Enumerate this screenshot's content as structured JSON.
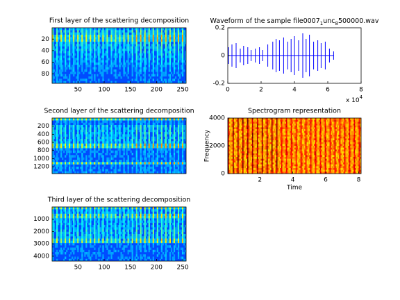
{
  "chart_data": [
    {
      "type": "image",
      "title": "First layer of the scattering decomposition",
      "xlim": [
        0.5,
        256.5
      ],
      "xticks": [
        50,
        100,
        150,
        200,
        250
      ],
      "ylim": [
        0.5,
        96.5
      ],
      "yticks": [
        20,
        40,
        60,
        80
      ],
      "y_reversed": true,
      "colormap": "jet"
    },
    {
      "type": "image",
      "title": "Second layer of the scattering decomposition",
      "xlim": [
        0.5,
        256.5
      ],
      "ylim": [
        0.5,
        1370
      ],
      "yticks": [
        200,
        400,
        600,
        800,
        1000,
        1200
      ],
      "y_reversed": true,
      "colormap": "jet"
    },
    {
      "type": "image",
      "title": "Third layer of the scattering decomposition",
      "xlim": [
        0.5,
        256.5
      ],
      "xticks": [
        50,
        100,
        150,
        200,
        250
      ],
      "ylim": [
        0.5,
        4400
      ],
      "yticks": [
        1000,
        2000,
        3000,
        4000
      ],
      "y_reversed": true,
      "colormap": "jet"
    },
    {
      "type": "stem",
      "title_parts": [
        {
          "text": "Waveform of the sample file0007"
        },
        {
          "text": "1",
          "sub": true
        },
        {
          "text": "unc"
        },
        {
          "text": "8",
          "sub": true
        },
        {
          "text": "500000.wav"
        }
      ],
      "x": [
        500,
        2500,
        5000,
        7500,
        9500,
        12000,
        14000,
        16500,
        19000,
        21000,
        24000,
        27000,
        29000,
        31000,
        33500,
        36000,
        38000,
        40000,
        42500,
        45000,
        47000,
        49000,
        51500,
        54000,
        56000,
        58500,
        61000,
        63500
      ],
      "values": [
        0.06,
        0.08,
        0.09,
        0.05,
        0.07,
        0.06,
        0.04,
        0.05,
        0.06,
        0.04,
        0.08,
        0.1,
        0.12,
        0.11,
        0.13,
        0.1,
        0.12,
        0.14,
        0.11,
        0.16,
        0.12,
        0.15,
        0.1,
        0.11,
        0.09,
        0.1,
        0.05,
        0.03
      ],
      "color": "#0000ff",
      "xlim": [
        0,
        80000
      ],
      "xticks": [
        {
          "value": 0,
          "label": "0"
        },
        {
          "value": 20000,
          "label": "2"
        },
        {
          "value": 40000,
          "label": "4"
        },
        {
          "value": 60000,
          "label": "6"
        },
        {
          "value": 80000,
          "label": "8"
        }
      ],
      "x_multiplier": {
        "base": "x 10",
        "exponent": "4"
      },
      "ylim": [
        -0.2,
        0.2
      ],
      "yticks": [
        -0.2,
        0,
        0.2
      ]
    },
    {
      "type": "spectrogram",
      "title": "Spectrogram representation",
      "xlabel": "Time",
      "ylabel": "Frequency",
      "xlim": [
        0.05,
        8.15
      ],
      "xticks": [
        2,
        4,
        6,
        8
      ],
      "ylim": [
        0,
        4000
      ],
      "yticks": [
        0,
        2000,
        4000
      ],
      "colormap": "hot"
    }
  ]
}
